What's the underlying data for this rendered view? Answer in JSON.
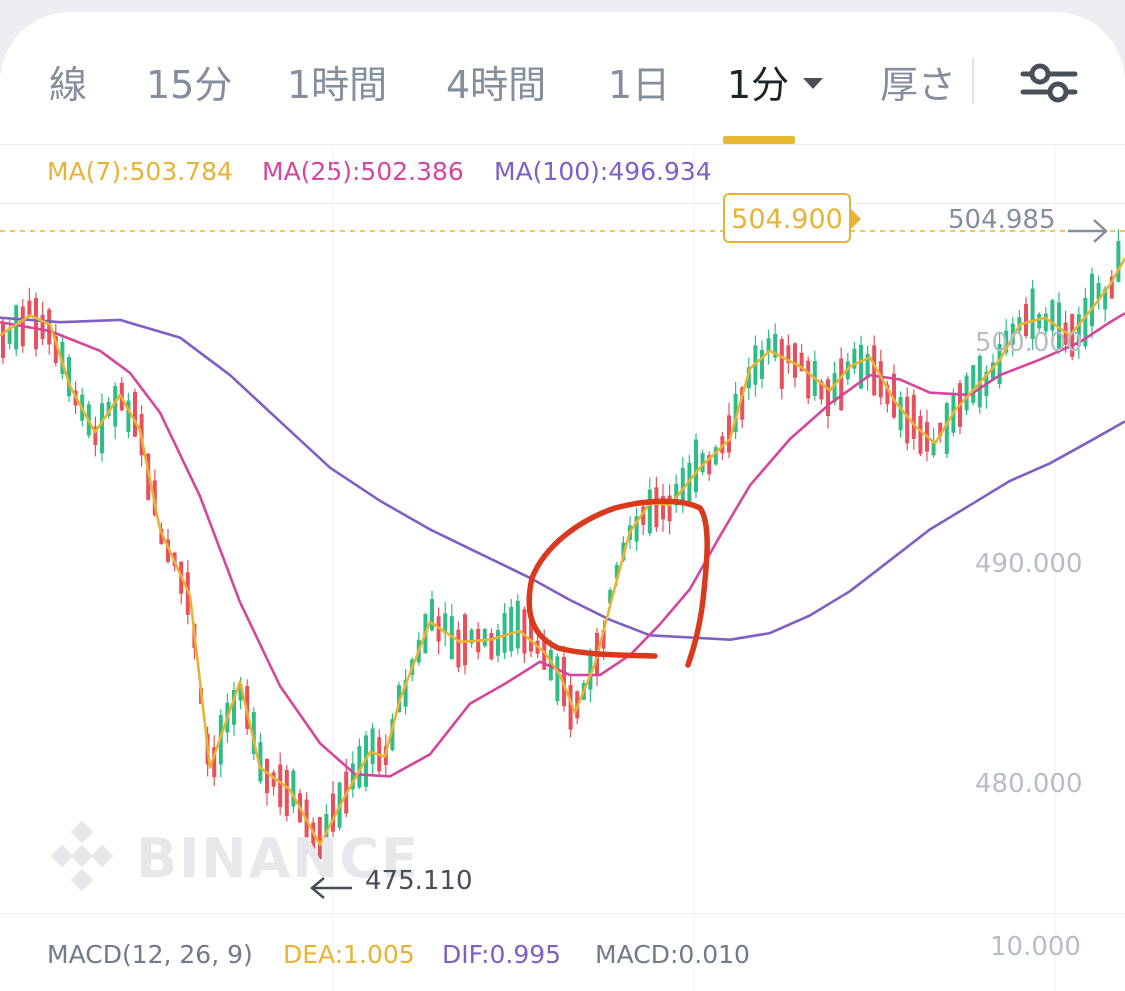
{
  "tabs": [
    {
      "label": "線",
      "active": false
    },
    {
      "label": "15分",
      "active": false
    },
    {
      "label": "1時間",
      "active": false
    },
    {
      "label": "4時間",
      "active": false
    },
    {
      "label": "1日",
      "active": false
    },
    {
      "label": "1分",
      "active": true,
      "dropdown": true
    },
    {
      "label": "厚さ",
      "active": false
    }
  ],
  "toolbar": {
    "settings_icon": "sliders-icon"
  },
  "indicators": {
    "ma7": "MA(7):503.784",
    "ma25": "MA(25):502.386",
    "ma100": "MA(100):496.934"
  },
  "price": {
    "current": "504.900",
    "last": "504.985",
    "low": "475.110"
  },
  "axis": {
    "labels": [
      "500.000",
      "490.000",
      "480.000"
    ],
    "macd_label": "10.000"
  },
  "watermark": "BINANCE",
  "macd": {
    "title": "MACD(12, 26, 9)",
    "dea": "DEA:1.005",
    "dif": "DIF:0.995",
    "macd": "MACD:0.010"
  },
  "colors": {
    "up": "#2ebd85",
    "down": "#e8505b",
    "ma7": "#e8b335",
    "ma25": "#d6449d",
    "ma100": "#7e5fc4",
    "annotation": "#d93a1e"
  },
  "chart_data": {
    "type": "candlestick",
    "y_unit": "price",
    "ylim": [
      474,
      506
    ],
    "axis_ticks": [
      480,
      490,
      500
    ],
    "current_price": 504.9,
    "last_price": 504.985,
    "low_price": 475.11,
    "ma7_path": [
      [
        0,
        500.3
      ],
      [
        30,
        501.2
      ],
      [
        50,
        500.8
      ],
      [
        70,
        498
      ],
      [
        95,
        495.9
      ],
      [
        120,
        497.6
      ],
      [
        140,
        496
      ],
      [
        160,
        491.5
      ],
      [
        190,
        488.5
      ],
      [
        210,
        480.7
      ],
      [
        240,
        484.6
      ],
      [
        260,
        480.7
      ],
      [
        290,
        479.7
      ],
      [
        320,
        477.2
      ],
      [
        345,
        479.4
      ],
      [
        370,
        481.4
      ],
      [
        385,
        481.2
      ],
      [
        400,
        483.8
      ],
      [
        430,
        487.3
      ],
      [
        460,
        486.4
      ],
      [
        490,
        486.5
      ],
      [
        520,
        486.9
      ],
      [
        545,
        485.9
      ],
      [
        560,
        484.9
      ],
      [
        575,
        483.2
      ],
      [
        595,
        485.4
      ],
      [
        615,
        488.9
      ],
      [
        630,
        491.4
      ],
      [
        650,
        492.7
      ],
      [
        670,
        492.6
      ],
      [
        700,
        494.3
      ],
      [
        730,
        495.6
      ],
      [
        750,
        498.8
      ],
      [
        770,
        499.6
      ],
      [
        800,
        498.9
      ],
      [
        830,
        497.8
      ],
      [
        850,
        498.9
      ],
      [
        870,
        499.3
      ],
      [
        895,
        497.3
      ],
      [
        915,
        496.2
      ],
      [
        935,
        495.4
      ],
      [
        955,
        496.9
      ],
      [
        975,
        497.9
      ],
      [
        1000,
        499.2
      ],
      [
        1020,
        500.8
      ],
      [
        1045,
        501.1
      ],
      [
        1070,
        500.3
      ],
      [
        1090,
        501.4
      ],
      [
        1110,
        502.6
      ],
      [
        1125,
        503.8
      ]
    ],
    "ma25_path": [
      [
        0,
        500.9
      ],
      [
        50,
        500.5
      ],
      [
        100,
        499.6
      ],
      [
        130,
        498.6
      ],
      [
        160,
        496.8
      ],
      [
        200,
        493
      ],
      [
        240,
        488.2
      ],
      [
        280,
        484.4
      ],
      [
        320,
        481.8
      ],
      [
        355,
        480.4
      ],
      [
        390,
        480.3
      ],
      [
        430,
        481.3
      ],
      [
        470,
        483.6
      ],
      [
        505,
        484.5
      ],
      [
        540,
        485.5
      ],
      [
        570,
        484.9
      ],
      [
        600,
        484.9
      ],
      [
        630,
        485.8
      ],
      [
        660,
        487.2
      ],
      [
        690,
        488.8
      ],
      [
        720,
        491.2
      ],
      [
        750,
        493.5
      ],
      [
        790,
        495.6
      ],
      [
        830,
        497.2
      ],
      [
        870,
        498.5
      ],
      [
        900,
        498.3
      ],
      [
        930,
        497.7
      ],
      [
        970,
        497.6
      ],
      [
        1000,
        498.5
      ],
      [
        1040,
        499.2
      ],
      [
        1080,
        500
      ],
      [
        1110,
        500.9
      ],
      [
        1125,
        501.3
      ]
    ],
    "ma100_path": [
      [
        0,
        501.1
      ],
      [
        60,
        500.9
      ],
      [
        120,
        501
      ],
      [
        180,
        500.2
      ],
      [
        230,
        498.5
      ],
      [
        280,
        496.4
      ],
      [
        330,
        494.3
      ],
      [
        380,
        492.8
      ],
      [
        430,
        491.5
      ],
      [
        480,
        490.4
      ],
      [
        530,
        489.3
      ],
      [
        570,
        488.3
      ],
      [
        610,
        487.4
      ],
      [
        650,
        486.7
      ],
      [
        690,
        486.6
      ],
      [
        730,
        486.5
      ],
      [
        770,
        486.8
      ],
      [
        810,
        487.6
      ],
      [
        850,
        488.7
      ],
      [
        890,
        490.1
      ],
      [
        930,
        491.5
      ],
      [
        970,
        492.6
      ],
      [
        1010,
        493.7
      ],
      [
        1050,
        494.5
      ],
      [
        1090,
        495.5
      ],
      [
        1125,
        496.4
      ]
    ],
    "annotation": "red hand-drawn circle around the breakout area"
  }
}
